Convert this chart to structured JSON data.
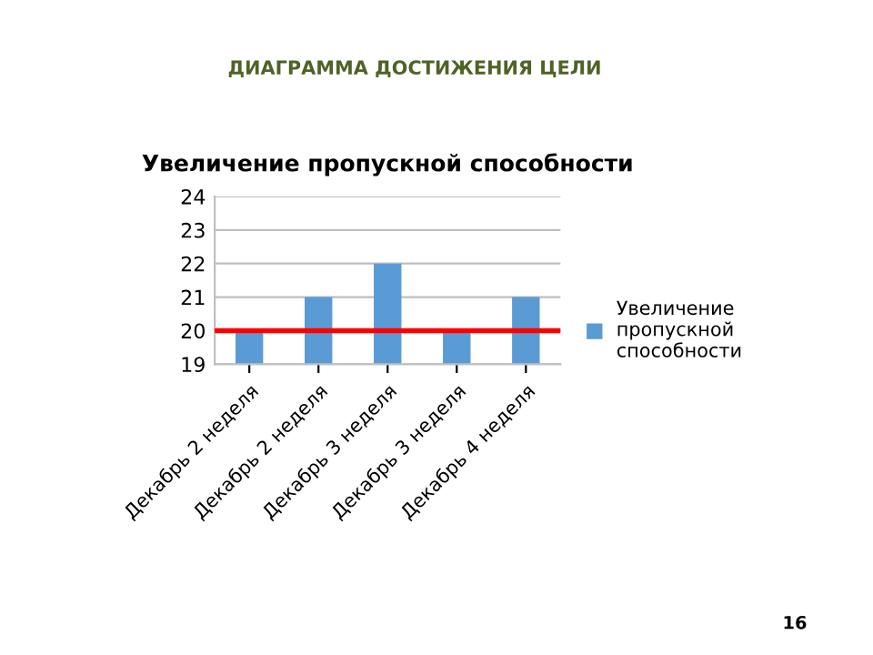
{
  "chart_data": {
    "type": "bar",
    "title": "Увеличение пропускной способности",
    "categories": [
      "Декабрь 2 неделя",
      "Декабрь 2 неделя",
      "Декабрь 3 неделя",
      "Декабрь 3 неделя",
      "Декабрь 4 неделя"
    ],
    "series": [
      {
        "name": "Увеличение пропускной способности",
        "color": "#5b9bd5",
        "values": [
          20,
          21,
          22,
          20,
          21
        ]
      }
    ],
    "ylim": [
      19,
      24
    ],
    "yticks": [
      19,
      20,
      21,
      22,
      23,
      24
    ],
    "grid": "y",
    "legend": "right",
    "ref_lines": [
      {
        "axis": "y",
        "value": 20,
        "color": "#ff0000"
      }
    ],
    "annotations": [
      "ДИАГРАММА ДОСТИЖЕНИЯ ЦЕЛИ",
      "16"
    ]
  }
}
